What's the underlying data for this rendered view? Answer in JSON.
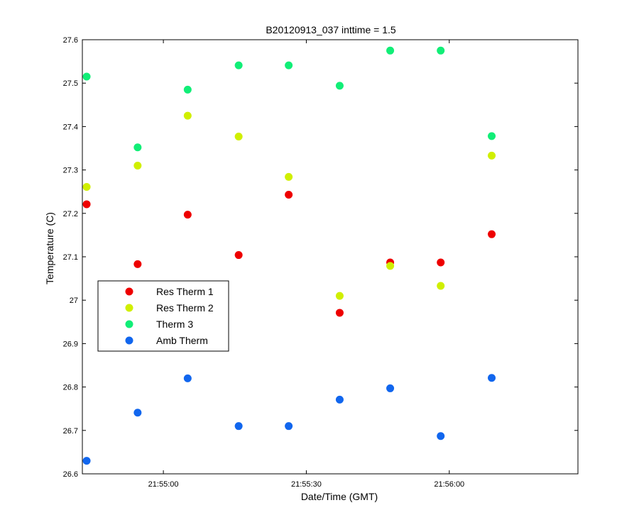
{
  "chart_data": {
    "type": "scatter",
    "title": "B20120913_037 inttime = 1.5",
    "xlabel": "Date/Time (GMT)",
    "ylabel": "Temperature (C)",
    "x_ticks": [
      "21:55:00",
      "21:55:30",
      "21:56:00"
    ],
    "x_tick_seconds": [
      0,
      30,
      60
    ],
    "xlim_seconds": [
      -17,
      87
    ],
    "ylim": [
      26.6,
      27.6
    ],
    "y_ticks": [
      "26.6",
      "26.7",
      "26.8",
      "26.9",
      "27",
      "27.1",
      "27.2",
      "27.3",
      "27.4",
      "27.5",
      "27.6"
    ],
    "y_tick_values": [
      26.6,
      26.7,
      26.8,
      26.9,
      27.0,
      27.1,
      27.2,
      27.3,
      27.4,
      27.5,
      27.6
    ],
    "grid": false,
    "legend_position": "left",
    "series": [
      {
        "name": "Res Therm 1",
        "color": "#ee0000",
        "x_seconds": [
          -16.1,
          -5.4,
          5.1,
          15.8,
          26.3,
          37.0,
          47.6,
          58.2,
          68.9
        ],
        "values": [
          27.221,
          27.083,
          27.197,
          27.104,
          27.243,
          26.971,
          27.087,
          27.087,
          27.152
        ]
      },
      {
        "name": "Res Therm 2",
        "color": "#d0ef00",
        "x_seconds": [
          -16.1,
          -5.4,
          5.1,
          15.8,
          26.3,
          37.0,
          47.6,
          58.2,
          68.9
        ],
        "values": [
          27.261,
          27.31,
          27.425,
          27.377,
          27.284,
          27.01,
          27.079,
          27.033,
          27.333
        ]
      },
      {
        "name": "Therm 3",
        "color": "#11ee77",
        "x_seconds": [
          -16.1,
          -5.4,
          5.1,
          15.8,
          26.3,
          37.0,
          47.6,
          58.2,
          68.9
        ],
        "values": [
          27.515,
          27.352,
          27.485,
          27.541,
          27.541,
          27.494,
          27.575,
          27.575,
          27.378
        ]
      },
      {
        "name": "Amb Therm",
        "color": "#1166ee",
        "x_seconds": [
          -16.1,
          -5.4,
          5.1,
          15.8,
          26.3,
          37.0,
          47.6,
          58.2,
          68.9
        ],
        "values": [
          26.63,
          26.741,
          26.82,
          26.71,
          26.71,
          26.771,
          26.797,
          26.687,
          26.821
        ]
      }
    ]
  }
}
